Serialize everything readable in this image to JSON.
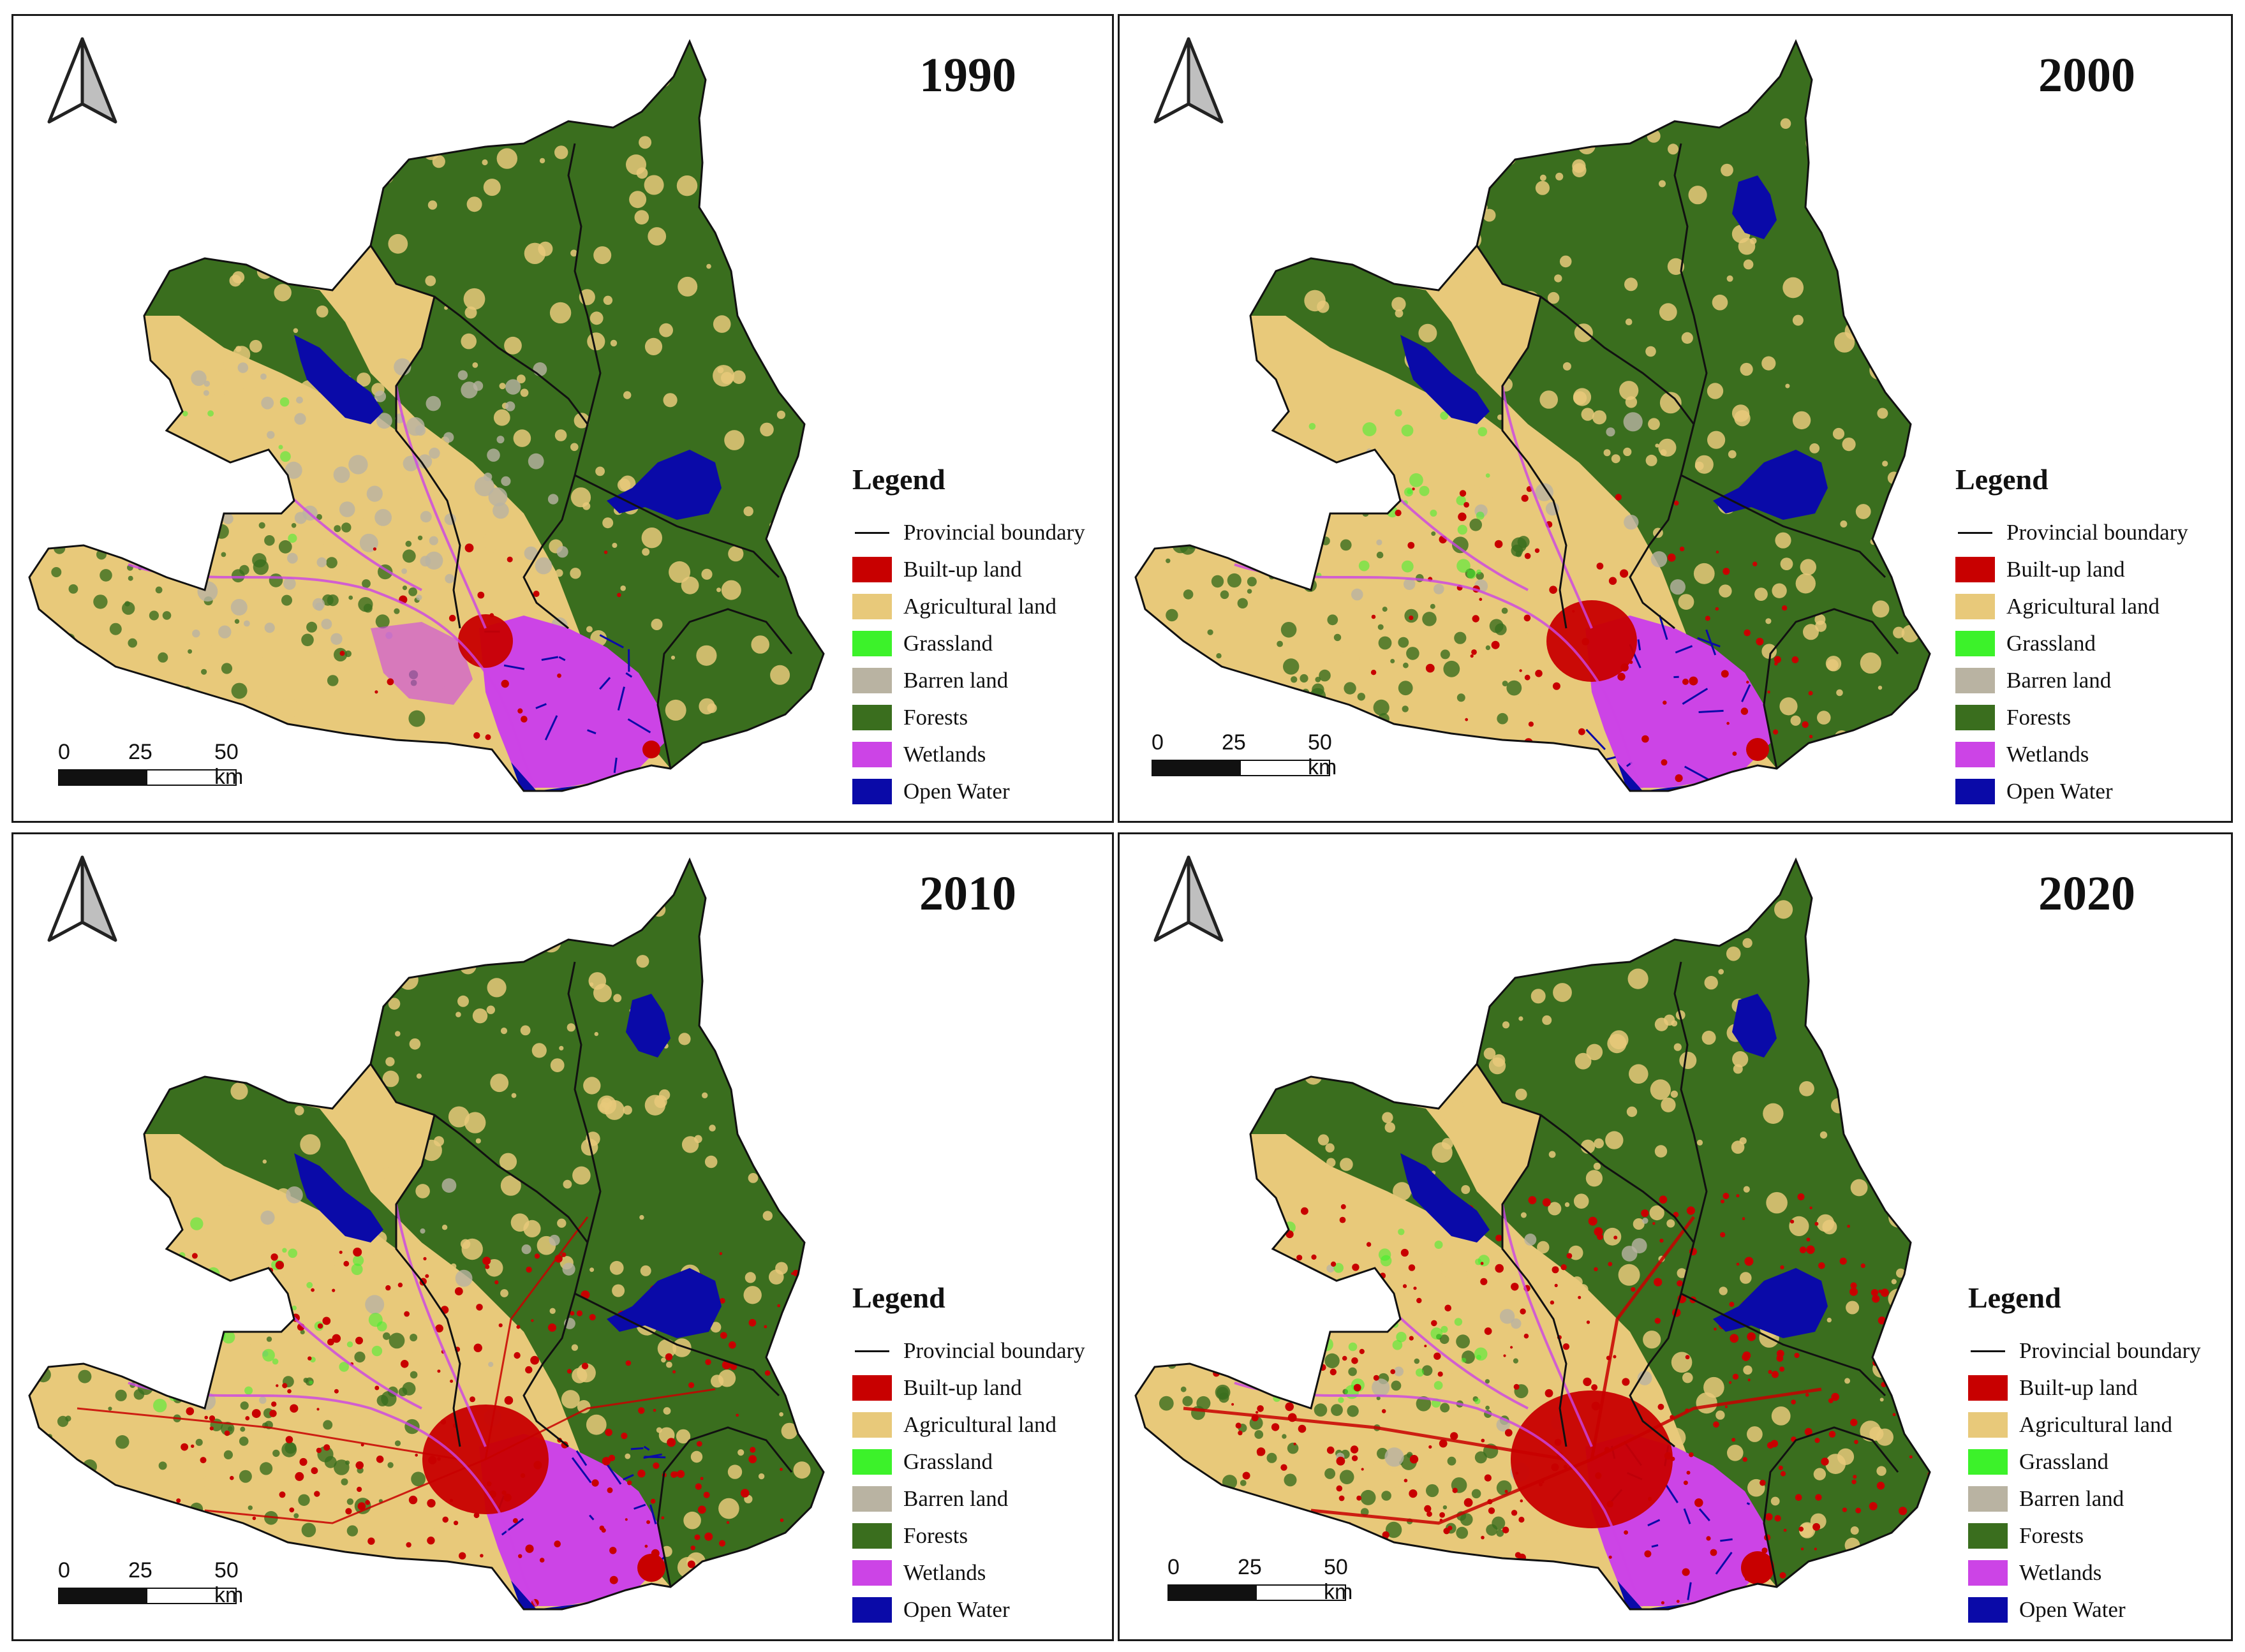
{
  "legend_title": "Legend",
  "legend": [
    {
      "label": "Provincial boundary",
      "kind": "line",
      "color": "#111111"
    },
    {
      "label": "Built-up land",
      "kind": "fill",
      "color": "#c80000"
    },
    {
      "label": "Agricultural land",
      "kind": "fill",
      "color": "#e8c97a"
    },
    {
      "label": "Grassland",
      "kind": "fill",
      "color": "#3cf22a"
    },
    {
      "label": "Barren land",
      "kind": "fill",
      "color": "#b9b3a2"
    },
    {
      "label": "Forests",
      "kind": "fill",
      "color": "#3a6e1e"
    },
    {
      "label": "Wetlands",
      "kind": "fill",
      "color": "#cc44e6"
    },
    {
      "label": "Open Water",
      "kind": "fill",
      "color": "#0a0aa8"
    }
  ],
  "scale": {
    "labels": [
      "0",
      "25",
      "50 km"
    ]
  },
  "panels": [
    {
      "year": "1990",
      "built_up_level": 1,
      "water_level": 1
    },
    {
      "year": "2000",
      "built_up_level": 2,
      "water_level": 2
    },
    {
      "year": "2010",
      "built_up_level": 3,
      "water_level": 2
    },
    {
      "year": "2020",
      "built_up_level": 4,
      "water_level": 2
    }
  ]
}
